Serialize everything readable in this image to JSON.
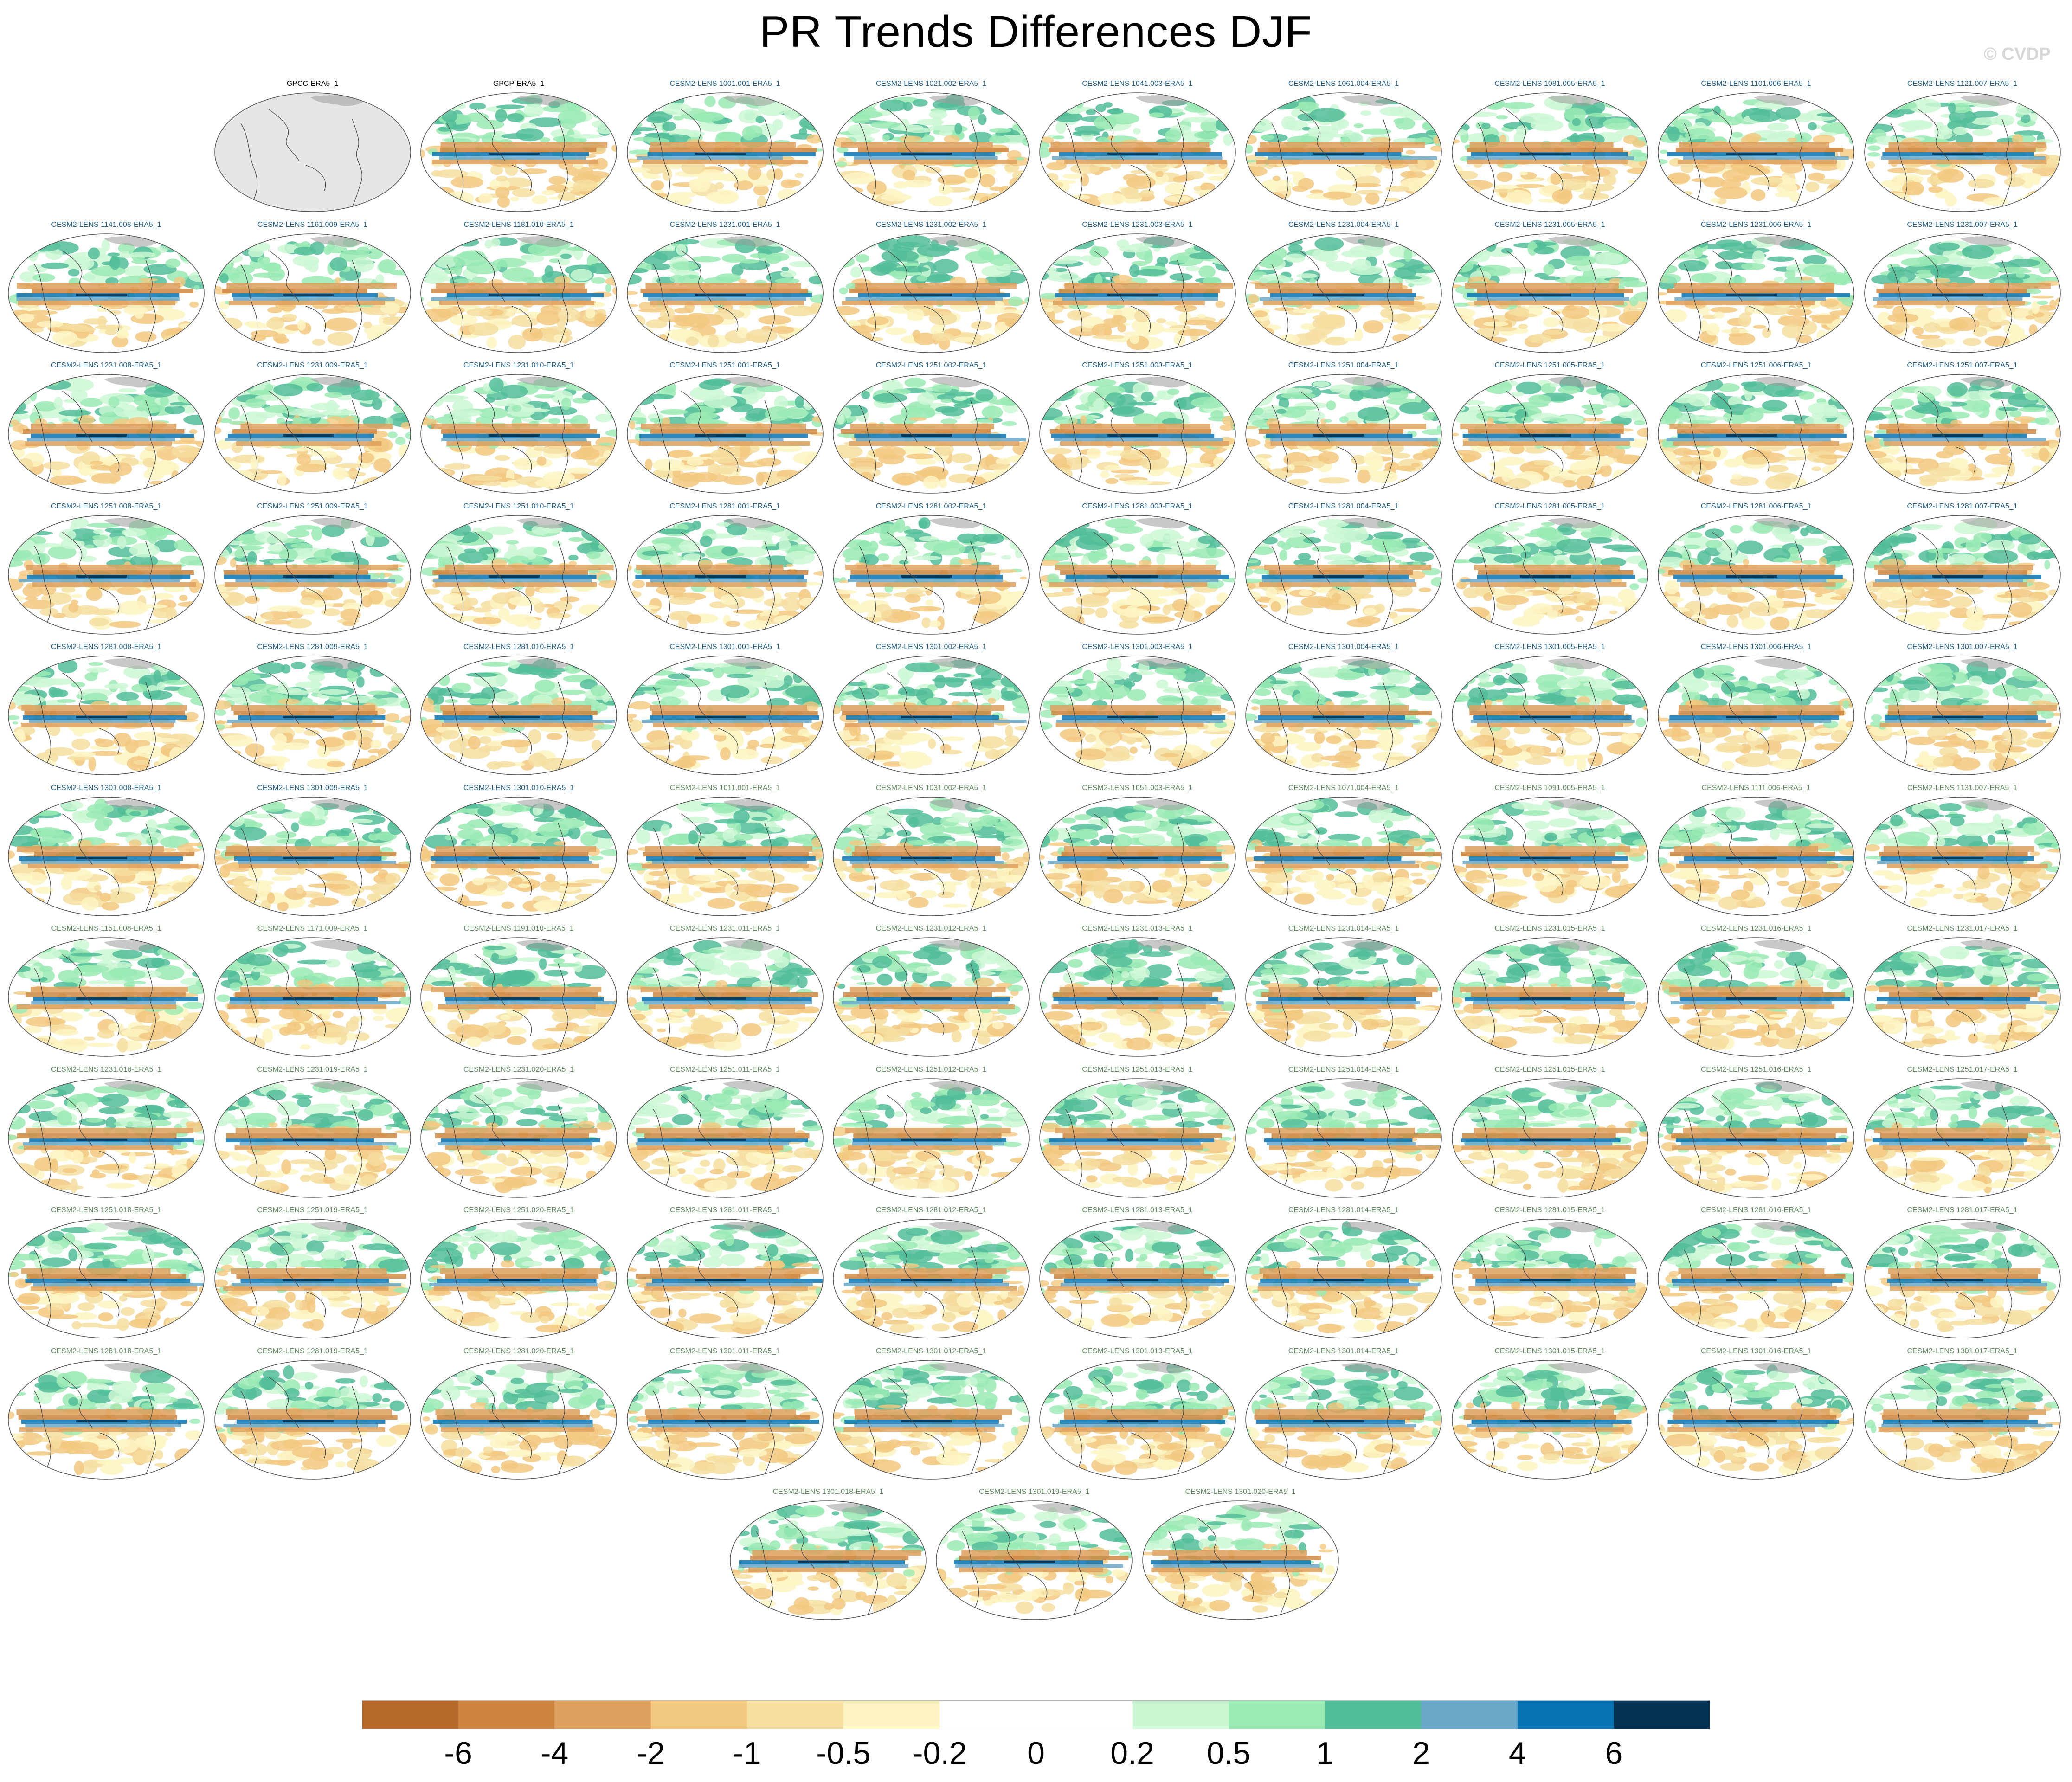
{
  "title": "PR Trends Differences DJF",
  "watermark": "© CVDP",
  "label_colors": {
    "observation": "#000000",
    "group_a": "#1f5f86",
    "group_b": "#5e8a5e"
  },
  "panel_colors": {
    "land_obs": "#e6e6e6",
    "coast": "#4a4a4a",
    "ice": "#9a9a9a"
  },
  "chart_data": {
    "type": "heatmap",
    "projection": "robinson-style global maps",
    "panel_titles": [
      "GPCC-ERA5_1",
      "GPCP-ERA5_1",
      "CESM2-LENS 1001.001-ERA5_1",
      "CESM2-LENS 1021.002-ERA5_1",
      "CESM2-LENS 1041.003-ERA5_1",
      "CESM2-LENS 1061.004-ERA5_1",
      "CESM2-LENS 1081.005-ERA5_1",
      "CESM2-LENS 1101.006-ERA5_1",
      "CESM2-LENS 1121.007-ERA5_1",
      "CESM2-LENS 1141.008-ERA5_1",
      "CESM2-LENS 1161.009-ERA5_1",
      "CESM2-LENS 1181.010-ERA5_1",
      "CESM2-LENS 1231.001-ERA5_1",
      "CESM2-LENS 1231.002-ERA5_1",
      "CESM2-LENS 1231.003-ERA5_1",
      "CESM2-LENS 1231.004-ERA5_1",
      "CESM2-LENS 1231.005-ERA5_1",
      "CESM2-LENS 1231.006-ERA5_1",
      "CESM2-LENS 1231.007-ERA5_1",
      "CESM2-LENS 1231.008-ERA5_1",
      "CESM2-LENS 1231.009-ERA5_1",
      "CESM2-LENS 1231.010-ERA5_1",
      "CESM2-LENS 1251.001-ERA5_1",
      "CESM2-LENS 1251.002-ERA5_1",
      "CESM2-LENS 1251.003-ERA5_1",
      "CESM2-LENS 1251.004-ERA5_1",
      "CESM2-LENS 1251.005-ERA5_1",
      "CESM2-LENS 1251.006-ERA5_1",
      "CESM2-LENS 1251.007-ERA5_1",
      "CESM2-LENS 1251.008-ERA5_1",
      "CESM2-LENS 1251.009-ERA5_1",
      "CESM2-LENS 1251.010-ERA5_1",
      "CESM2-LENS 1281.001-ERA5_1",
      "CESM2-LENS 1281.002-ERA5_1",
      "CESM2-LENS 1281.003-ERA5_1",
      "CESM2-LENS 1281.004-ERA5_1",
      "CESM2-LENS 1281.005-ERA5_1",
      "CESM2-LENS 1281.006-ERA5_1",
      "CESM2-LENS 1281.007-ERA5_1",
      "CESM2-LENS 1281.008-ERA5_1",
      "CESM2-LENS 1281.009-ERA5_1",
      "CESM2-LENS 1281.010-ERA5_1",
      "CESM2-LENS 1301.001-ERA5_1",
      "CESM2-LENS 1301.002-ERA5_1",
      "CESM2-LENS 1301.003-ERA5_1",
      "CESM2-LENS 1301.004-ERA5_1",
      "CESM2-LENS 1301.005-ERA5_1",
      "CESM2-LENS 1301.006-ERA5_1",
      "CESM2-LENS 1301.007-ERA5_1",
      "CESM2-LENS 1301.008-ERA5_1",
      "CESM2-LENS 1301.009-ERA5_1",
      "CESM2-LENS 1301.010-ERA5_1",
      "CESM2-LENS 1011.001-ERA5_1",
      "CESM2-LENS 1031.002-ERA5_1",
      "CESM2-LENS 1051.003-ERA5_1",
      "CESM2-LENS 1071.004-ERA5_1",
      "CESM2-LENS 1091.005-ERA5_1",
      "CESM2-LENS 1111.006-ERA5_1",
      "CESM2-LENS 1131.007-ERA5_1",
      "CESM2-LENS 1151.008-ERA5_1",
      "CESM2-LENS 1171.009-ERA5_1",
      "CESM2-LENS 1191.010-ERA5_1",
      "CESM2-LENS 1231.011-ERA5_1",
      "CESM2-LENS 1231.012-ERA5_1",
      "CESM2-LENS 1231.013-ERA5_1",
      "CESM2-LENS 1231.014-ERA5_1",
      "CESM2-LENS 1231.015-ERA5_1",
      "CESM2-LENS 1231.016-ERA5_1",
      "CESM2-LENS 1231.017-ERA5_1",
      "CESM2-LENS 1231.018-ERA5_1",
      "CESM2-LENS 1231.019-ERA5_1",
      "CESM2-LENS 1231.020-ERA5_1",
      "CESM2-LENS 1251.011-ERA5_1",
      "CESM2-LENS 1251.012-ERA5_1",
      "CESM2-LENS 1251.013-ERA5_1",
      "CESM2-LENS 1251.014-ERA5_1",
      "CESM2-LENS 1251.015-ERA5_1",
      "CESM2-LENS 1251.016-ERA5_1",
      "CESM2-LENS 1251.017-ERA5_1",
      "CESM2-LENS 1251.018-ERA5_1",
      "CESM2-LENS 1251.019-ERA5_1",
      "CESM2-LENS 1251.020-ERA5_1",
      "CESM2-LENS 1281.011-ERA5_1",
      "CESM2-LENS 1281.012-ERA5_1",
      "CESM2-LENS 1281.013-ERA5_1",
      "CESM2-LENS 1281.014-ERA5_1",
      "CESM2-LENS 1281.015-ERA5_1",
      "CESM2-LENS 1281.016-ERA5_1",
      "CESM2-LENS 1281.017-ERA5_1",
      "CESM2-LENS 1281.018-ERA5_1",
      "CESM2-LENS 1281.019-ERA5_1",
      "CESM2-LENS 1281.020-ERA5_1",
      "CESM2-LENS 1301.011-ERA5_1",
      "CESM2-LENS 1301.012-ERA5_1",
      "CESM2-LENS 1301.013-ERA5_1",
      "CESM2-LENS 1301.014-ERA5_1",
      "CESM2-LENS 1301.015-ERA5_1",
      "CESM2-LENS 1301.016-ERA5_1",
      "CESM2-LENS 1301.017-ERA5_1",
      "CESM2-LENS 1301.018-ERA5_1",
      "CESM2-LENS 1301.019-ERA5_1",
      "CESM2-LENS 1301.020-ERA5_1"
    ],
    "label_group_b_start": 52,
    "panels_per_row": 10,
    "first_row_offset": 1,
    "last_row_offset": 3.5,
    "colorbar": {
      "levels": [
        "-6",
        "-4",
        "-2",
        "-1",
        "-0.5",
        "-0.2",
        "0",
        "0.2",
        "0.5",
        "1",
        "2",
        "4",
        "6"
      ],
      "colors": [
        "#b5692a",
        "#cd853f",
        "#dea05e",
        "#f2c880",
        "#f4dea0",
        "#fdf4c2",
        "#ffffff",
        "#ffffff",
        "#cbf7d3",
        "#9aeab4",
        "#52bd99",
        "#6aa8c9",
        "#0873b1",
        "#043454"
      ]
    }
  }
}
